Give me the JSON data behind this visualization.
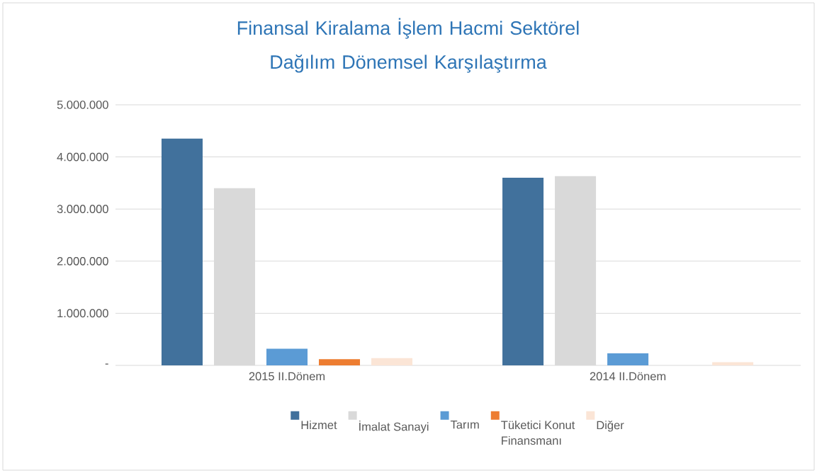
{
  "chart_data": {
    "type": "bar",
    "title": "Finansal Kiralama İşlem Hacmi Sektörel Dağılım Dönemsel Karşılaştırma",
    "categories": [
      "2015 II.Dönem",
      "2014 II.Dönem"
    ],
    "series": [
      {
        "name": "Hizmet",
        "color": "#41719c",
        "values": [
          4350000,
          3600000
        ]
      },
      {
        "name": "İmalat Sanayi",
        "color": "#d9d9d9",
        "values": [
          3400000,
          3630000
        ]
      },
      {
        "name": "Tarım",
        "color": "#5b9bd5",
        "values": [
          320000,
          230000
        ]
      },
      {
        "name": "Tüketici Konut Finansmanı",
        "color": "#ed7d31",
        "values": [
          120000,
          0
        ]
      },
      {
        "name": "Diğer",
        "color": "#fbe5d6",
        "values": [
          140000,
          60000
        ]
      }
    ],
    "ylim": [
      0,
      5000000
    ],
    "yticks": [
      {
        "value": 0,
        "label": "-"
      },
      {
        "value": 1000000,
        "label": "1.000.000"
      },
      {
        "value": 2000000,
        "label": "2.000.000"
      },
      {
        "value": 3000000,
        "label": "3.000.000"
      },
      {
        "value": 4000000,
        "label": "4.000.000"
      },
      {
        "value": 5000000,
        "label": "5.000.000"
      }
    ],
    "grid": "y",
    "legend": "bottom"
  }
}
